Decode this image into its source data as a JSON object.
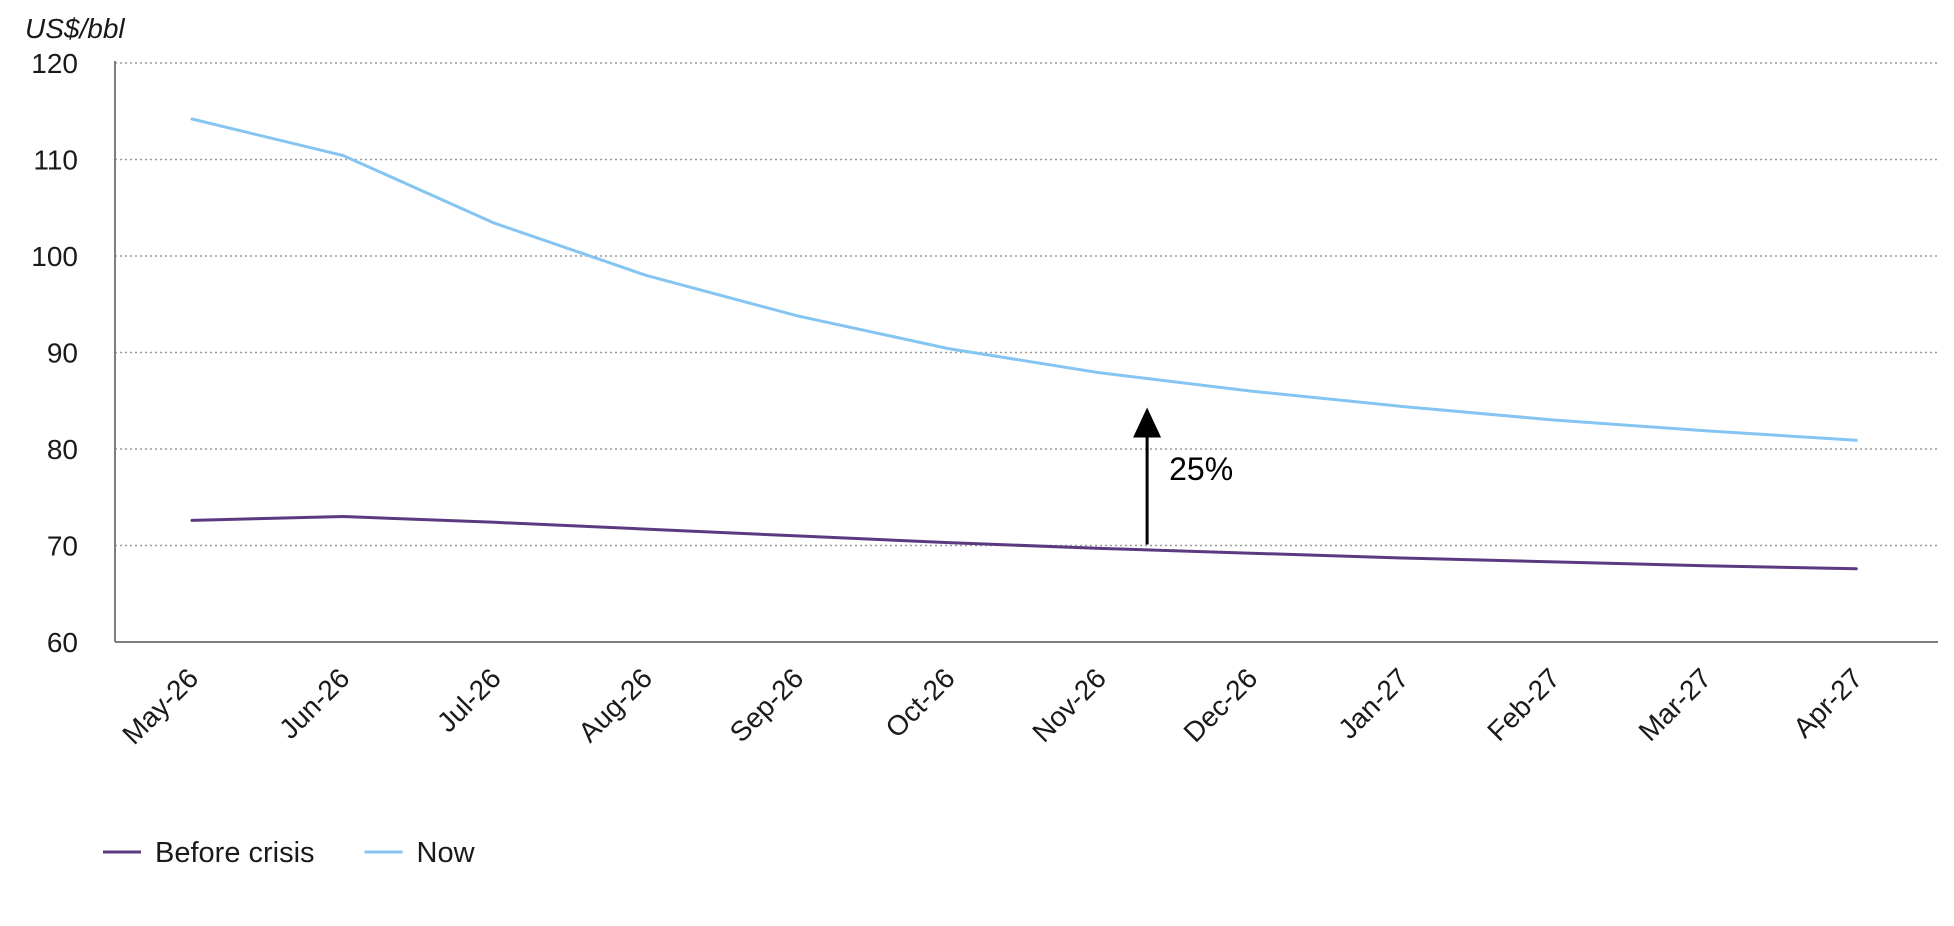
{
  "chart_data": {
    "type": "line",
    "title": "",
    "xlabel": "",
    "ylabel": "US$/bbl",
    "ylim": [
      60,
      120
    ],
    "yticks": [
      60,
      70,
      80,
      90,
      100,
      110,
      120
    ],
    "grid": "horizontal dotted",
    "categories": [
      "May-26",
      "Jun-26",
      "Jul-26",
      "Aug-26",
      "Sep-26",
      "Oct-26",
      "Nov-26",
      "Dec-26",
      "Jan-27",
      "Feb-27",
      "Mar-27",
      "Apr-27"
    ],
    "series": [
      {
        "name": "Before crisis",
        "color": "#5b3a82",
        "values": [
          72.6,
          73.0,
          72.4,
          71.7,
          71.0,
          70.3,
          69.7,
          69.2,
          68.7,
          68.3,
          67.9,
          67.6
        ]
      },
      {
        "name": "Now",
        "color": "#85c5f2",
        "values": [
          114.2,
          110.4,
          103.4,
          98.0,
          93.8,
          90.4,
          87.9,
          86.0,
          84.4,
          83.0,
          81.9,
          80.9
        ]
      }
    ],
    "annotation": {
      "label": "25%",
      "x_category": "Dec-26",
      "from_value": 70.1,
      "to_value": 84.3
    },
    "legend_position": "bottom-left"
  }
}
